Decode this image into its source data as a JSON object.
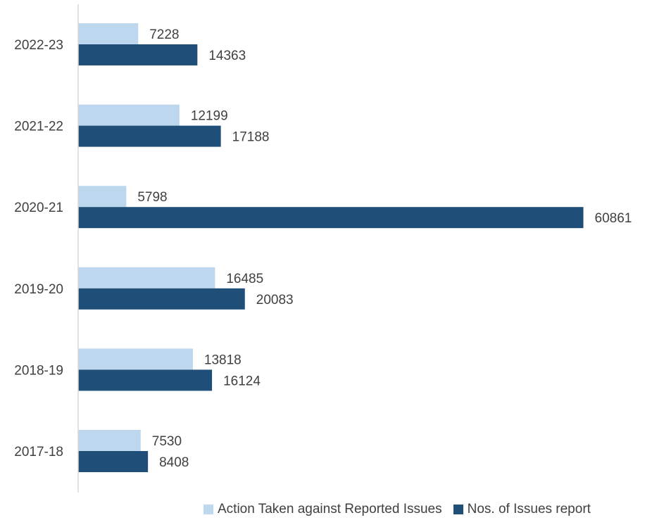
{
  "chart_data": {
    "type": "bar",
    "orientation": "horizontal",
    "categories": [
      "2022-23",
      "2021-22",
      "2020-21",
      "2019-20",
      "2018-19",
      "2017-18"
    ],
    "series": [
      {
        "name": "Action Taken against Reported Issues",
        "color": "#bdd7ee",
        "values": [
          7228,
          12199,
          5798,
          16485,
          13818,
          7530
        ]
      },
      {
        "name": "Nos. of Issues report",
        "color": "#1f4e79",
        "values": [
          14363,
          17188,
          60861,
          20083,
          16124,
          8408
        ]
      }
    ],
    "title": "",
    "xlabel": "",
    "ylabel": "",
    "xlim": [
      0,
      65000
    ],
    "grid": false,
    "data_labels": true,
    "legend_position": "bottom"
  }
}
